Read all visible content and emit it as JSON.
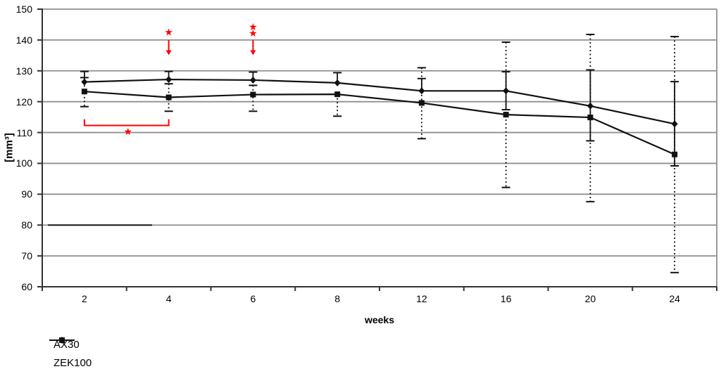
{
  "chart_data": {
    "type": "line",
    "title": "",
    "xlabel": "weeks",
    "ylabel": "[mm³]",
    "ylim": [
      60,
      150
    ],
    "yticks": [
      150,
      140,
      130,
      120,
      110,
      100,
      90,
      80,
      70,
      60
    ],
    "categories": [
      "2",
      "4",
      "6",
      "8",
      "12",
      "16",
      "20",
      "24"
    ],
    "grid": "horizontal",
    "legend_position": "bottom-left",
    "colors": {
      "series": "#111111",
      "grid": "#8f8f8f",
      "axis": "#333333",
      "annotation": "#ff0000",
      "background": "#ffffff"
    },
    "series": [
      {
        "name": "AX30",
        "marker": "diamond",
        "error_style": "solid",
        "values": [
          126.4,
          127.2,
          127.0,
          126.1,
          123.5,
          123.5,
          118.6,
          112.8
        ],
        "err_hi": [
          129.8,
          129.8,
          129.6,
          129.4,
          127.5,
          129.7,
          130.3,
          126.5
        ],
        "err_lo": [
          null,
          null,
          null,
          null,
          null,
          117.4,
          107.3,
          99.2
        ]
      },
      {
        "name": "ZEK100",
        "marker": "square",
        "error_style": "dashed",
        "values": [
          123.3,
          121.4,
          122.3,
          122.4,
          119.6,
          115.8,
          114.9,
          102.9
        ],
        "err_hi": [
          127.8,
          125.8,
          125.3,
          null,
          131.0,
          139.3,
          141.8,
          141.1
        ],
        "err_lo": [
          118.4,
          116.9,
          116.9,
          115.3,
          108.0,
          92.2,
          87.6,
          64.6
        ]
      }
    ],
    "annotations": {
      "star_glyph": "★",
      "star_arrows": [
        {
          "week": "4",
          "star_values": [
            142.6
          ],
          "arrow_from": 140.0,
          "arrow_to": 135.3
        },
        {
          "week": "6",
          "star_values": [
            144.3,
            142.2
          ],
          "arrow_from": 140.0,
          "arrow_to": 135.3
        }
      ],
      "bracket": {
        "from_week": "2",
        "to_week": "4",
        "bar_value": 112.3,
        "end_value": 114.3,
        "star_value": 110.4
      },
      "baseline_artifact": {
        "value": 80.0
      }
    }
  }
}
